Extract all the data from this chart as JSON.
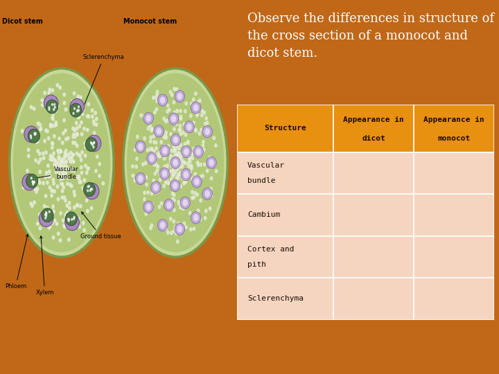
{
  "bg_color": "#c06818",
  "title": "Observe the differences in structure of\nthe cross section of a monocot and\ndicot stem.",
  "title_color": "#ffffff",
  "title_fontsize": 13.5,
  "image_panel_bg": "#ffffff",
  "header_color": "#e89010",
  "header_text_color": "#000000",
  "row_color": "#f5d5c0",
  "cell_text_color": "#1a0a00",
  "col_headers_line1": [
    "Structure",
    "Appearance in",
    "Appearance in"
  ],
  "col_headers_line2": [
    "",
    "dicot",
    "monocot"
  ],
  "row_labels_line1": [
    "Vascular",
    "Cambium",
    "Cortex and",
    "Sclerenchyma"
  ],
  "row_labels_line2": [
    "bundle",
    "",
    "pith",
    ""
  ],
  "dicot_label": "Dicot stem",
  "monocot_label": "Monocot stem",
  "ground_tissue_label": "Ground tissue",
  "vascular_bundle_label": "Vascular\nbundle",
  "sclerenchyma_label": "Sclerenchyma",
  "phloem_label": "Phloem",
  "xylem_label": "Xylem",
  "stem_green_light": "#c8d898",
  "stem_green_mid": "#b0c878",
  "stem_green_dark": "#a0b868",
  "stem_border": "#7a9848",
  "vb_purple": "#a888c0",
  "vb_green": "#507848",
  "mono_vb_purple": "#c0a8d8",
  "mono_vb_light": "#e0d8f0"
}
